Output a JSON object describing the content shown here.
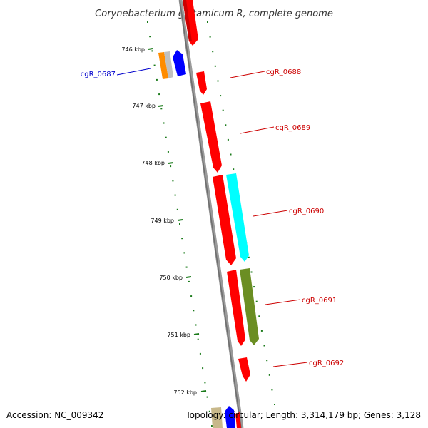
{
  "title": "Corynebacterium glutamicum R, complete genome",
  "footer": {
    "accession": "Accession: NC_009342",
    "summary": "Topology: circular; Length: 3,314,179 bp; Genes: 3,128"
  },
  "ticks": [
    "746 kbp",
    "747 kbp",
    "748 kbp",
    "749 kbp",
    "750 kbp",
    "751 kbp",
    "752 kbp"
  ],
  "gene_labels": [
    {
      "text": "cgR_0687",
      "color": "#0000cc"
    },
    {
      "text": "cgR_0688",
      "color": "#cc0000"
    },
    {
      "text": "cgR_0689",
      "color": "#cc0000"
    },
    {
      "text": "cgR_0690",
      "color": "#cc0000"
    },
    {
      "text": "cgR_0691",
      "color": "#cc0000"
    },
    {
      "text": "cgR_0692",
      "color": "#cc0000"
    }
  ],
  "colors": {
    "backbone": "#8a8a8a",
    "dots": "#1a7a1a",
    "gene_red": "#ff0000",
    "gene_blue": "#0000ff",
    "gene_cyan": "#00ffff",
    "gene_olive": "#6b8e23",
    "gene_orange": "#ff8c00",
    "gene_gray": "#c0c0c0",
    "gene_tan": "#c8b88a"
  }
}
